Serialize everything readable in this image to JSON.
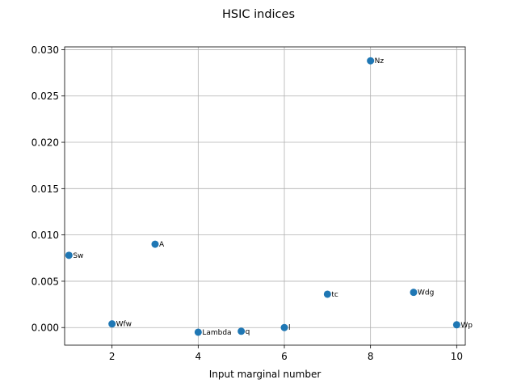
{
  "chart_data": {
    "type": "scatter",
    "title": "HSIC indices",
    "xlabel": "Input marginal number",
    "ylabel": "",
    "xlim": [
      0.9,
      10.2
    ],
    "ylim": [
      -0.0019,
      0.0303
    ],
    "xticks": [
      2,
      4,
      6,
      8,
      10
    ],
    "xtick_labels": [
      "2",
      "4",
      "6",
      "8",
      "10"
    ],
    "yticks": [
      0.0,
      0.005,
      0.01,
      0.015,
      0.02,
      0.025,
      0.03
    ],
    "ytick_labels": [
      "0.000",
      "0.005",
      "0.010",
      "0.015",
      "0.020",
      "0.025",
      "0.030"
    ],
    "grid": true,
    "marker_color": "#1f77b4",
    "points": [
      {
        "x": 1,
        "y": 0.0078,
        "label": "Sw"
      },
      {
        "x": 2,
        "y": 0.0004,
        "label": "Wfw"
      },
      {
        "x": 3,
        "y": 0.009,
        "label": "A"
      },
      {
        "x": 4,
        "y": -0.0005,
        "label": "Lambda"
      },
      {
        "x": 5,
        "y": -0.0004,
        "label": "q"
      },
      {
        "x": 6,
        "y": 0.0,
        "label": "l"
      },
      {
        "x": 7,
        "y": 0.0036,
        "label": "tc"
      },
      {
        "x": 8,
        "y": 0.0288,
        "label": "Nz"
      },
      {
        "x": 9,
        "y": 0.0038,
        "label": "Wdg"
      },
      {
        "x": 10,
        "y": 0.0003,
        "label": "Wp"
      }
    ]
  }
}
